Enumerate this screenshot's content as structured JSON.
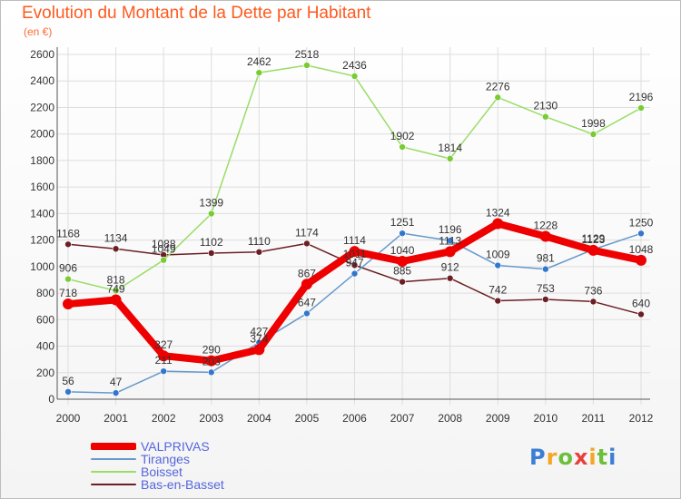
{
  "header": {
    "title": "Evolution du Montant de la Dette par Habitant",
    "subtitle": "(en €)"
  },
  "logo": {
    "letters": [
      "P",
      "r",
      "o",
      "x",
      "i",
      "t",
      "i"
    ],
    "colors": [
      "#3a7fd5",
      "#f5a623",
      "#6cbf3a",
      "#e8403a",
      "#f5a623",
      "#6cbf3a",
      "#3a7fd5"
    ]
  },
  "chart_data": {
    "type": "line",
    "title": "Evolution du Montant de la Dette par Habitant",
    "subtitle": "(en €)",
    "xlabel": "",
    "ylabel": "",
    "categories": [
      "2000",
      "2001",
      "2002",
      "2003",
      "2004",
      "2005",
      "2006",
      "2007",
      "2008",
      "2009",
      "2010",
      "2011",
      "2012"
    ],
    "ylim": [
      0,
      2600
    ],
    "yticks": [
      0,
      200,
      400,
      600,
      800,
      1000,
      1200,
      1400,
      1600,
      1800,
      2000,
      2200,
      2400,
      2600
    ],
    "grid": true,
    "legend_position": "bottom-left",
    "series": [
      {
        "name": "Bas-en-Basset",
        "color": "#6b1f24",
        "marker": "#6b1f24",
        "width": 1.5,
        "values": [
          1168,
          1134,
          1088,
          1102,
          1110,
          1174,
          1011,
          885,
          912,
          742,
          753,
          736,
          640
        ]
      },
      {
        "name": "Boisset",
        "color": "#99dd66",
        "marker": "#77cc33",
        "width": 1.5,
        "values": [
          906,
          818,
          1049,
          1399,
          2462,
          2518,
          2436,
          1902,
          1814,
          2276,
          2130,
          1998,
          2196
        ]
      },
      {
        "name": "Tiranges",
        "color": "#6699cc",
        "marker": "#3377cc",
        "width": 1.5,
        "values": [
          56,
          47,
          211,
          203,
          427,
          647,
          947,
          1251,
          1196,
          1009,
          981,
          1129,
          1250
        ]
      },
      {
        "name": "VALPRIVAS",
        "color": "#ee0000",
        "marker": "#ee0000",
        "width": 8,
        "values": [
          718,
          749,
          327,
          290,
          374,
          867,
          1114,
          1040,
          1113,
          1324,
          1228,
          1123,
          1048
        ]
      }
    ],
    "legend_order": [
      "VALPRIVAS",
      "Tiranges",
      "Boisset",
      "Bas-en-Basset"
    ]
  }
}
